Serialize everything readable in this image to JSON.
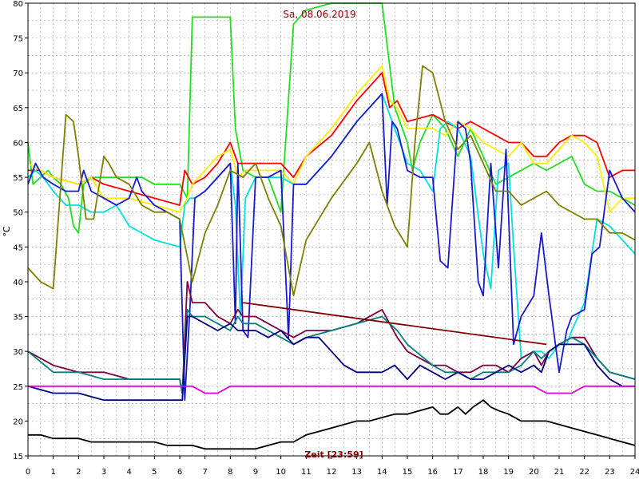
{
  "chart_data": {
    "type": "line",
    "title": "Sa, 08.06.2019",
    "xlabel": "Zeit [23:59]",
    "ylabel": "°C",
    "xlim": [
      0,
      24
    ],
    "ylim": [
      15,
      80
    ],
    "xticks": [
      0,
      1,
      2,
      3,
      4,
      5,
      6,
      7,
      8,
      9,
      10,
      11,
      12,
      13,
      14,
      15,
      16,
      17,
      18,
      19,
      20,
      21,
      22,
      23,
      24
    ],
    "yticks": [
      15,
      20,
      25,
      30,
      35,
      40,
      45,
      50,
      55,
      60,
      65,
      70,
      75,
      80
    ],
    "grid": true,
    "series": [
      {
        "color": "#22dd22",
        "x": [
          0,
          0.2,
          0.5,
          0.8,
          1,
          1.3,
          1.6,
          1.8,
          2,
          2.2,
          2.5,
          3,
          3.5,
          4,
          4.5,
          5,
          5.5,
          6,
          6.3,
          6.5,
          6.8,
          7,
          7.5,
          8,
          8.2,
          8.5,
          9,
          9.5,
          10,
          10.5,
          11,
          12,
          13,
          14,
          14.5,
          15,
          15.2,
          15.5,
          16,
          16.5,
          17,
          17.5,
          18,
          18.5,
          19,
          19.5,
          20,
          20.5,
          21,
          21.5,
          22,
          22.5,
          23,
          23.5,
          24
        ],
        "y": [
          60,
          54,
          55,
          56,
          55,
          54,
          52,
          48,
          47,
          54,
          55,
          55,
          55,
          55,
          55,
          54,
          54,
          54,
          52,
          78,
          78,
          78,
          78,
          78,
          62,
          56,
          55,
          55,
          50,
          77,
          79,
          80,
          80,
          80,
          65,
          60,
          56,
          60,
          64,
          62,
          58,
          62,
          58,
          54,
          55,
          56,
          57,
          56,
          57,
          58,
          54,
          53,
          53,
          52,
          51
        ]
      },
      {
        "color": "#ff0000",
        "x": [
          0,
          0.5,
          1,
          2,
          2.5,
          3,
          4,
          5,
          6,
          6.2,
          6.5,
          7,
          7.5,
          8,
          8.3,
          8.6,
          9,
          10,
          10.5,
          11,
          12,
          13,
          14,
          14.3,
          14.6,
          15,
          16,
          16.5,
          17,
          17.5,
          18,
          18.5,
          19,
          19.5,
          20,
          20.5,
          21,
          21.5,
          22,
          22.5,
          23,
          23.5,
          24
        ],
        "y": [
          56,
          56,
          55,
          54,
          55,
          54,
          53,
          52,
          51,
          56,
          54,
          55,
          57,
          60,
          57,
          57,
          57,
          57,
          55,
          58,
          61,
          66,
          70,
          65,
          66,
          63,
          64,
          63,
          62,
          63,
          62,
          61,
          60,
          60,
          58,
          58,
          60,
          61,
          61,
          60,
          55,
          56,
          56
        ]
      },
      {
        "color": "#ffee00",
        "x": [
          0,
          0.5,
          1,
          2,
          2.5,
          3,
          4,
          5,
          6,
          6.3,
          6.5,
          7,
          7.5,
          8,
          8.3,
          8.6,
          9,
          10,
          10.5,
          11,
          12,
          13,
          14,
          14.3,
          14.6,
          15,
          16,
          16.5,
          17,
          17.5,
          18,
          18.5,
          19,
          19.5,
          20,
          20.5,
          21,
          21.5,
          22,
          22.5,
          23,
          23.5,
          24
        ],
        "y": [
          57,
          56,
          55,
          54,
          55,
          52,
          52,
          51,
          50,
          52,
          54,
          56,
          58,
          59,
          55,
          56,
          56,
          56,
          54,
          58,
          62,
          67,
          71,
          66,
          65,
          62,
          62,
          61,
          63,
          62,
          60,
          59,
          58,
          60,
          57,
          57,
          59,
          61,
          60,
          58,
          50,
          52,
          52
        ]
      },
      {
        "color": "#00e0e0",
        "x": [
          0,
          0.3,
          0.6,
          1,
          1.5,
          2,
          2.5,
          3,
          3.5,
          4,
          4.5,
          5,
          6,
          6.2,
          6.4,
          6.6,
          7,
          7.5,
          8,
          8.2,
          8.4,
          8.6,
          9,
          10,
          10.5,
          11,
          12,
          13,
          14,
          14.3,
          14.6,
          15,
          15.5,
          16,
          16.3,
          16.6,
          17,
          17.5,
          18,
          18.3,
          18.6,
          19,
          19.2,
          19.5,
          20,
          20.3,
          20.6,
          21,
          21.3,
          21.5,
          22,
          22.5,
          23,
          23.5,
          24
        ],
        "y": [
          55,
          56,
          55,
          53,
          51,
          51,
          50,
          50,
          51,
          48,
          47,
          46,
          45,
          51,
          52,
          52,
          53,
          55,
          57,
          51,
          35,
          52,
          55,
          55,
          54,
          54,
          58,
          63,
          67,
          64,
          61,
          57,
          56,
          53,
          62,
          63,
          62,
          58,
          44,
          39,
          56,
          57,
          45,
          29,
          30,
          30,
          29,
          31,
          31,
          33,
          37,
          49,
          48,
          46,
          44
        ]
      },
      {
        "color": "#1a1acc",
        "x": [
          0,
          0.3,
          0.6,
          1,
          1.5,
          2,
          2.2,
          2.5,
          3,
          3.5,
          4,
          4.3,
          4.5,
          5,
          5.5,
          6,
          6.2,
          6.4,
          6.6,
          7,
          7.5,
          8,
          8.2,
          8.3,
          8.5,
          8.7,
          9,
          9.5,
          10,
          10.3,
          10.5,
          11,
          12,
          13,
          14,
          14.2,
          14.4,
          14.6,
          15,
          15.5,
          16,
          16.3,
          16.6,
          17,
          17.3,
          17.5,
          17.8,
          18,
          18.3,
          18.6,
          18.9,
          19.2,
          19.5,
          20,
          20.3,
          20.6,
          21,
          21.3,
          21.5,
          22,
          22.3,
          22.6,
          23,
          23.5,
          24
        ],
        "y": [
          54,
          57,
          55,
          54,
          53,
          53,
          56,
          53,
          52,
          51,
          52,
          55,
          53,
          51,
          50,
          49,
          23,
          36,
          52,
          53,
          55,
          57,
          34,
          57,
          33,
          32,
          55,
          55,
          56,
          32,
          54,
          54,
          58,
          63,
          67,
          51,
          63,
          62,
          56,
          55,
          55,
          43,
          42,
          63,
          62,
          57,
          40,
          38,
          57,
          42,
          59,
          31,
          35,
          38,
          47,
          38,
          27,
          33,
          35,
          36,
          44,
          45,
          56,
          52,
          50
        ]
      },
      {
        "color": "#808000",
        "x": [
          0,
          0.5,
          1,
          1.5,
          1.8,
          2,
          2.3,
          2.6,
          3,
          3.2,
          3.5,
          4,
          4.5,
          5,
          5.5,
          6,
          6.5,
          7,
          7.5,
          8,
          8.5,
          9,
          9.5,
          10,
          10.5,
          11,
          12,
          13,
          13.5,
          14,
          14.5,
          15,
          15.3,
          15.6,
          16,
          16.5,
          17,
          17.5,
          18,
          18.5,
          19,
          19.5,
          20,
          20.5,
          21,
          21.5,
          22,
          22.5,
          23,
          23.5,
          24
        ],
        "y": [
          42,
          40,
          39,
          64,
          63,
          58,
          49,
          49,
          58,
          57,
          55,
          54,
          51,
          50,
          50,
          49,
          40,
          47,
          51,
          56,
          55,
          57,
          52,
          48,
          38,
          46,
          52,
          57,
          60,
          53,
          48,
          45,
          60,
          71,
          70,
          63,
          59,
          61,
          57,
          53,
          53,
          51,
          52,
          53,
          51,
          50,
          49,
          49,
          47,
          47,
          46
        ]
      },
      {
        "color": "#800040",
        "x": [
          0,
          1,
          2,
          3,
          4,
          5,
          6,
          6.1,
          6.3,
          6.5,
          7,
          7.5,
          8,
          8.3,
          8.5,
          9,
          9.5,
          10,
          10.5,
          11,
          12,
          13,
          14,
          14.3,
          14.6,
          15,
          16,
          16.5,
          17,
          17.5,
          18,
          18.5,
          19,
          19.5,
          20,
          20.3,
          20.6,
          21,
          21.5,
          22,
          22.5,
          23,
          24
        ],
        "y": [
          30,
          28,
          27,
          27,
          26,
          26,
          26,
          24,
          40,
          37,
          37,
          35,
          34,
          36,
          35,
          35,
          34,
          33,
          32,
          33,
          33,
          34,
          36,
          34,
          32,
          30,
          28,
          28,
          27,
          27,
          28,
          28,
          27,
          29,
          30,
          28,
          30,
          31,
          32,
          32,
          29,
          27,
          26
        ]
      },
      {
        "color": "#008080",
        "x": [
          0,
          1,
          2,
          3,
          4,
          5,
          6,
          6.1,
          6.3,
          6.5,
          7,
          7.5,
          8,
          8.3,
          8.5,
          9,
          9.5,
          10,
          10.5,
          11,
          12,
          13,
          14,
          14.3,
          14.6,
          15,
          16,
          16.5,
          17,
          17.5,
          18,
          18.5,
          19,
          19.5,
          20,
          20.3,
          20.6,
          21,
          21.5,
          22,
          22.5,
          23,
          24
        ],
        "y": [
          30,
          27,
          27,
          26,
          26,
          26,
          26,
          24,
          36,
          35,
          35,
          34,
          33,
          35,
          34,
          34,
          33,
          32,
          31,
          32,
          33,
          34,
          35,
          34,
          33,
          31,
          28,
          27,
          27,
          26,
          27,
          27,
          27,
          28,
          30,
          29,
          30,
          31,
          32,
          31,
          29,
          27,
          26
        ]
      },
      {
        "color": "#000080",
        "x": [
          0,
          1,
          2,
          3,
          4,
          5,
          6,
          6.1,
          6.3,
          6.5,
          7,
          7.5,
          8,
          8.3,
          8.5,
          9,
          9.5,
          10,
          10.5,
          11,
          11.5,
          12,
          12.5,
          13,
          14,
          14.5,
          15,
          15.5,
          16,
          16.5,
          17,
          17.5,
          18,
          18.5,
          19,
          19.5,
          20,
          20.3,
          20.6,
          21,
          21.5,
          22,
          22.5,
          23,
          23.5,
          24
        ],
        "y": [
          25,
          24,
          24,
          23,
          23,
          23,
          23,
          23,
          35,
          35,
          34,
          33,
          34,
          33,
          33,
          33,
          32,
          33,
          31,
          32,
          32,
          30,
          28,
          27,
          27,
          28,
          26,
          28,
          27,
          26,
          27,
          26,
          26,
          27,
          28,
          27,
          28,
          27,
          30,
          31,
          31,
          31,
          28,
          26,
          25,
          25
        ]
      },
      {
        "color": "#dd00dd",
        "x": [
          0,
          1,
          2,
          3,
          4,
          5,
          6,
          6.5,
          7,
          7.5,
          8,
          8.5,
          9,
          10,
          11,
          12,
          13,
          14,
          15,
          16,
          17,
          18,
          18.5,
          19,
          19.5,
          20,
          20.5,
          21,
          21.5,
          22,
          22.5,
          23,
          24
        ],
        "y": [
          25,
          25,
          25,
          25,
          25,
          25,
          25,
          25,
          24,
          24,
          25,
          25,
          25,
          25,
          25,
          25,
          25,
          25,
          25,
          25,
          25,
          25,
          25,
          25,
          25,
          25,
          24,
          24,
          24,
          25,
          25,
          25,
          25
        ]
      },
      {
        "color": "#000000",
        "x": [
          0,
          0.5,
          1,
          1.5,
          2,
          2.5,
          3,
          3.5,
          4,
          4.5,
          5,
          5.5,
          6,
          6.5,
          7,
          7.5,
          8,
          8.5,
          9,
          9.5,
          10,
          10.5,
          11,
          11.5,
          12,
          12.5,
          13,
          13.5,
          14,
          14.5,
          15,
          15.5,
          16,
          16.3,
          16.6,
          17,
          17.3,
          17.6,
          18,
          18.3,
          18.6,
          19,
          19.5,
          20,
          20.5,
          21,
          21.5,
          22,
          22.5,
          23,
          23.5,
          24
        ],
        "y": [
          18,
          18,
          17.5,
          17.5,
          17.5,
          17,
          17,
          17,
          17,
          17,
          17,
          16.5,
          16.5,
          16.5,
          16,
          16,
          16,
          16,
          16,
          16.5,
          17,
          17,
          18,
          18.5,
          19,
          19.5,
          20,
          20,
          20.5,
          21,
          21,
          21.5,
          22,
          21,
          21,
          22,
          21,
          22,
          23,
          22,
          21.5,
          21,
          20,
          20,
          20,
          19.5,
          19,
          18.5,
          18,
          17.5,
          17,
          16.5
        ]
      },
      {
        "color": "#800000",
        "x": [
          8.5,
          20.5
        ],
        "y": [
          37,
          31
        ]
      }
    ]
  }
}
